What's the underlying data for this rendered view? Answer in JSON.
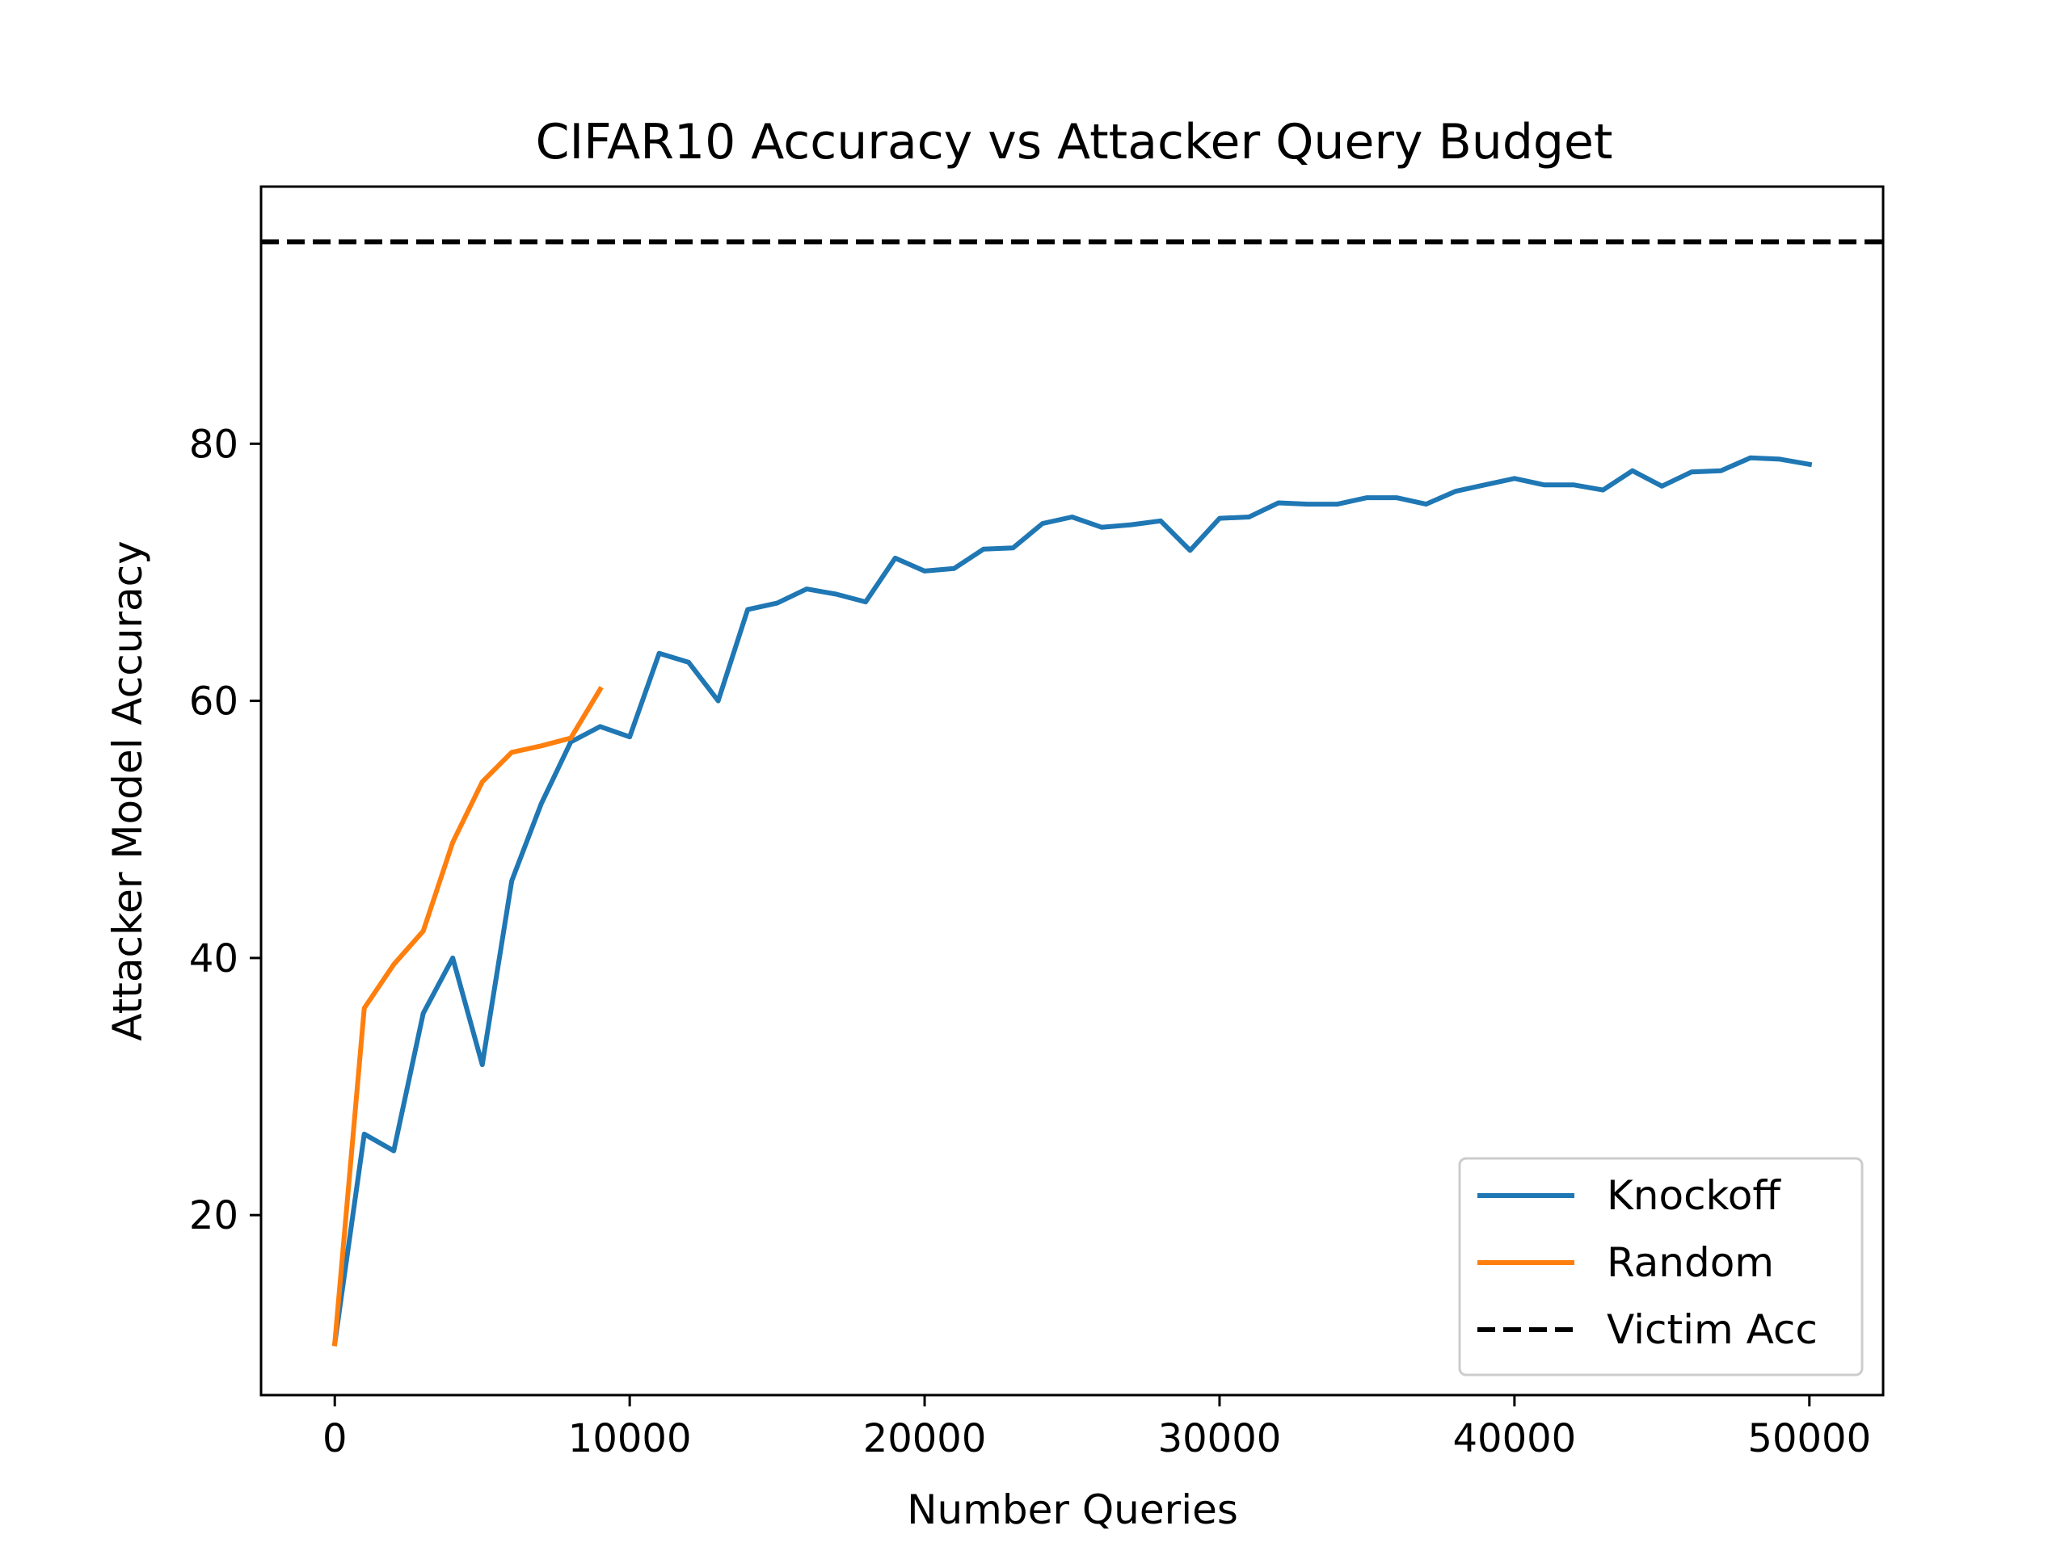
{
  "chart_data": {
    "type": "line",
    "title": "CIFAR10 Accuracy vs Attacker Query Budget",
    "xlabel": "Number Queries",
    "ylabel": "Attacker Model Accuracy",
    "xlim": [
      -2500,
      52500
    ],
    "ylim": [
      6,
      100
    ],
    "xticks": [
      0,
      10000,
      20000,
      30000,
      40000,
      50000
    ],
    "yticks": [
      20,
      40,
      60,
      80
    ],
    "legend_position": "lower-right",
    "grid": false,
    "series": [
      {
        "name": "Knockoff",
        "color": "#1f77b4",
        "style": "solid",
        "x": [
          0,
          1000,
          2000,
          3000,
          4000,
          5000,
          6000,
          7000,
          8000,
          9000,
          10000,
          11000,
          12000,
          13000,
          14000,
          15000,
          16000,
          17000,
          18000,
          19000,
          20000,
          21000,
          22000,
          23000,
          24000,
          25000,
          26000,
          27000,
          28000,
          29000,
          30000,
          31000,
          32000,
          33000,
          34000,
          35000,
          36000,
          37000,
          38000,
          39000,
          40000,
          41000,
          42000,
          43000,
          44000,
          45000,
          46000,
          47000,
          48000,
          49000,
          50000
        ],
        "y": [
          10,
          26.3,
          25,
          35.7,
          40,
          31.7,
          46,
          52,
          56.8,
          58,
          57.2,
          63.7,
          63,
          60,
          67.1,
          67.6,
          68.7,
          68.3,
          67.7,
          71.1,
          70.1,
          70.3,
          71.8,
          71.9,
          73.8,
          74.3,
          73.5,
          73.7,
          74,
          71.7,
          74.2,
          74.3,
          75.4,
          75.3,
          75.3,
          75.8,
          75.8,
          75.3,
          76.3,
          76.8,
          77.3,
          76.8,
          76.8,
          76.4,
          77.9,
          76.7,
          77.8,
          77.9,
          78.9,
          78.8,
          78.4
        ]
      },
      {
        "name": "Random",
        "color": "#ff7f0e",
        "style": "solid",
        "x": [
          0,
          1000,
          2000,
          3000,
          4000,
          5000,
          6000,
          7000,
          8000,
          9000
        ],
        "y": [
          10,
          36.1,
          39.5,
          42.1,
          49,
          53.7,
          56,
          56.5,
          57.1,
          60.9
        ]
      },
      {
        "name": "Victim Acc",
        "color": "#000000",
        "style": "dashed",
        "hline": 95.7
      }
    ]
  }
}
